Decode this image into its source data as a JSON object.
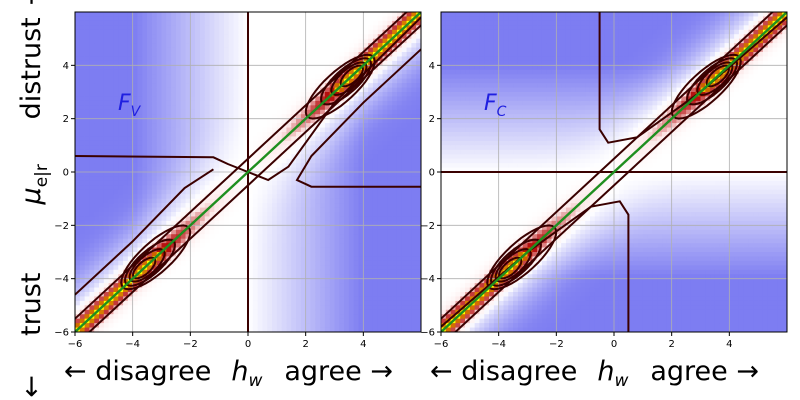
{
  "chart_data": [
    {
      "type": "heatmap",
      "panel_label": {
        "symbol": "F",
        "subscript": "V"
      },
      "xlim": [
        -6,
        6
      ],
      "ylim": [
        -6,
        6
      ],
      "xticks": [
        -6,
        -4,
        -2,
        0,
        2,
        4
      ],
      "yticks": [
        -6,
        -4,
        -2,
        0,
        2,
        4
      ],
      "grid": true,
      "colormap": {
        "negative": "#6e6ef0",
        "zero": "#ffffff",
        "positive_low": "#fde8e8",
        "positive_high": "#b00000",
        "peak": "#ffff00"
      },
      "identity_line": {
        "slope": 1,
        "intercept": 0,
        "color": "#1f8f1f"
      },
      "zero_line": {
        "axis": "vertical",
        "at": 0,
        "color": "#3a0000"
      },
      "contour_color": "#3a0000"
    },
    {
      "type": "heatmap",
      "panel_label": {
        "symbol": "F",
        "subscript": "C"
      },
      "xlim": [
        -6,
        6
      ],
      "ylim": [
        -6,
        6
      ],
      "xticks": [
        -6,
        -4,
        -2,
        0,
        2,
        4
      ],
      "yticks": [
        -6,
        -4,
        -2,
        0,
        2,
        4
      ],
      "grid": true,
      "colormap": {
        "negative": "#6e6ef0",
        "zero": "#ffffff",
        "positive_low": "#fde8e8",
        "positive_high": "#b00000",
        "peak": "#ffff00"
      },
      "identity_line": {
        "slope": 1,
        "intercept": 0,
        "color": "#1f8f1f"
      },
      "zero_line": {
        "axis": "horizontal",
        "at": 0,
        "color": "#3a0000"
      },
      "contour_color": "#3a0000"
    }
  ],
  "axes": {
    "ylabel": {
      "symbol": "μ",
      "subscript": "e|r"
    },
    "y_top_word": "distrust",
    "y_top_arrow": "→",
    "y_bottom_word": "trust",
    "y_bottom_arrow": "←",
    "xlabel_left": [
      {
        "left": "← disagree",
        "symbol": "h",
        "subscript": "w",
        "right": "agree →"
      },
      {
        "left": "← disagree",
        "symbol": "h",
        "subscript": "w",
        "right": "agree →"
      }
    ]
  }
}
